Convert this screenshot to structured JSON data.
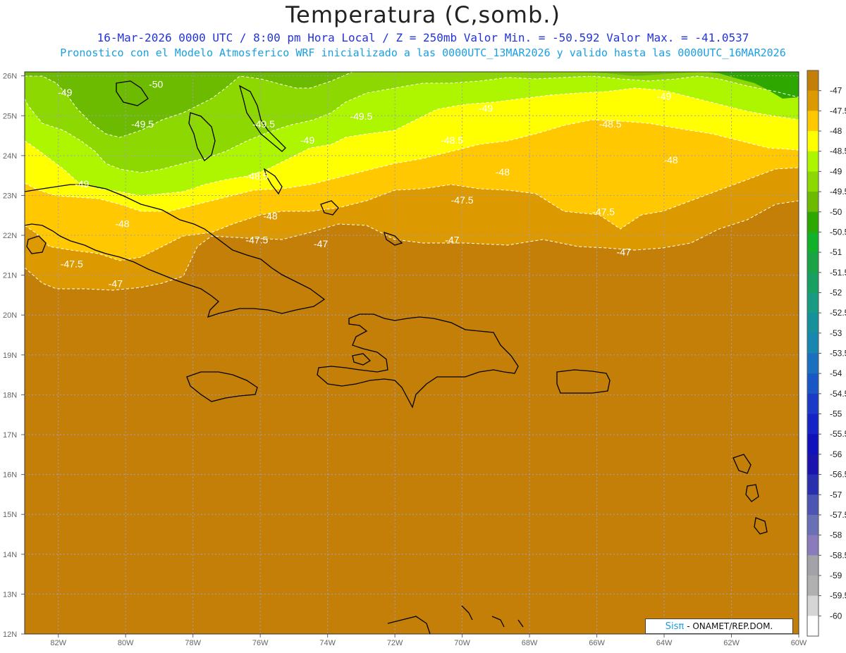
{
  "header": {
    "title": "Temperatura (C,somb.)",
    "subtitle_line1": "16-Mar-2026  0000 UTC / 8:00 pm Hora Local / Z = 250mb   Valor Min. = -50.592  Valor Max. = -41.0537",
    "subtitle_line2": "Pronostico con el Modelo Atmosferico WRF inicializado a las 0000UTC_13MAR2026 y valido hasta las  0000UTC_16MAR2026"
  },
  "map": {
    "lon_labels": [
      "82W",
      "80W",
      "78W",
      "76W",
      "74W",
      "72W",
      "70W",
      "68W",
      "66W",
      "64W",
      "62W",
      "60W"
    ],
    "lat_labels": [
      "26N",
      "25N",
      "24N",
      "23N",
      "22N",
      "21N",
      "20N",
      "19N",
      "18N",
      "17N",
      "16N",
      "15N",
      "14N",
      "13N",
      "12N"
    ],
    "contour_labels": [
      {
        "text": "-49",
        "lon": -81.8,
        "lat": 25.5
      },
      {
        "text": "-50",
        "lon": -79.1,
        "lat": 25.7
      },
      {
        "text": "-49.5",
        "lon": -79.5,
        "lat": 24.7
      },
      {
        "text": "-49.5",
        "lon": -75.9,
        "lat": 24.7
      },
      {
        "text": "-49.5",
        "lon": -73.0,
        "lat": 24.9
      },
      {
        "text": "-49",
        "lon": -74.6,
        "lat": 24.3
      },
      {
        "text": "-49",
        "lon": -69.3,
        "lat": 25.1
      },
      {
        "text": "-49",
        "lon": -64.0,
        "lat": 25.4
      },
      {
        "text": "-48.5",
        "lon": -65.6,
        "lat": 24.7
      },
      {
        "text": "-48.5",
        "lon": -70.3,
        "lat": 24.3
      },
      {
        "text": "-48.5",
        "lon": -76.1,
        "lat": 23.4
      },
      {
        "text": "-48",
        "lon": -63.8,
        "lat": 23.8
      },
      {
        "text": "-48",
        "lon": -68.8,
        "lat": 23.5
      },
      {
        "text": "-48",
        "lon": -75.7,
        "lat": 22.4
      },
      {
        "text": "-49",
        "lon": -81.3,
        "lat": 23.2
      },
      {
        "text": "-48",
        "lon": -80.1,
        "lat": 22.2
      },
      {
        "text": "-47.5",
        "lon": -70.0,
        "lat": 22.8
      },
      {
        "text": "-47.5",
        "lon": -65.8,
        "lat": 22.5
      },
      {
        "text": "-47.5",
        "lon": -76.1,
        "lat": 21.8
      },
      {
        "text": "-47",
        "lon": -74.2,
        "lat": 21.7
      },
      {
        "text": "-47",
        "lon": -70.3,
        "lat": 21.8
      },
      {
        "text": "-47",
        "lon": -65.2,
        "lat": 21.5
      },
      {
        "text": "-47.5",
        "lon": -81.6,
        "lat": 21.2
      },
      {
        "text": "-47",
        "lon": -80.3,
        "lat": 20.7
      }
    ]
  },
  "colorbar": {
    "labels": [
      "-47",
      "-47.5",
      "-48",
      "-48.5",
      "-49",
      "-49.5",
      "-50",
      "-50.5",
      "-51",
      "-51.5",
      "-52",
      "-52.5",
      "-53",
      "-53.5",
      "-54",
      "-54.5",
      "-55",
      "-55.5",
      "-56",
      "-56.5",
      "-57",
      "-57.5",
      "-58",
      "-58.5",
      "-59",
      "-59.5",
      "-60"
    ],
    "colors": [
      "#c47f08",
      "#dc9a00",
      "#ffc800",
      "#ffff00",
      "#aef500",
      "#8cd800",
      "#6cbb00",
      "#2ea700",
      "#12b12a",
      "#1aa446",
      "#18a062",
      "#179b83",
      "#16909b",
      "#1786b0",
      "#1b6fbf",
      "#1a57c6",
      "#1c3ac8",
      "#1624c6",
      "#1111bb",
      "#1a14ad",
      "#2a2fae",
      "#4d55b2",
      "#6a70b6",
      "#8a7cbc",
      "#a2a2a8",
      "#b0b0b0",
      "#d5d5d5",
      "#ffffff"
    ]
  },
  "credit": {
    "brand": "Sisπ",
    "text": "- ONAMET/REP.DOM."
  }
}
